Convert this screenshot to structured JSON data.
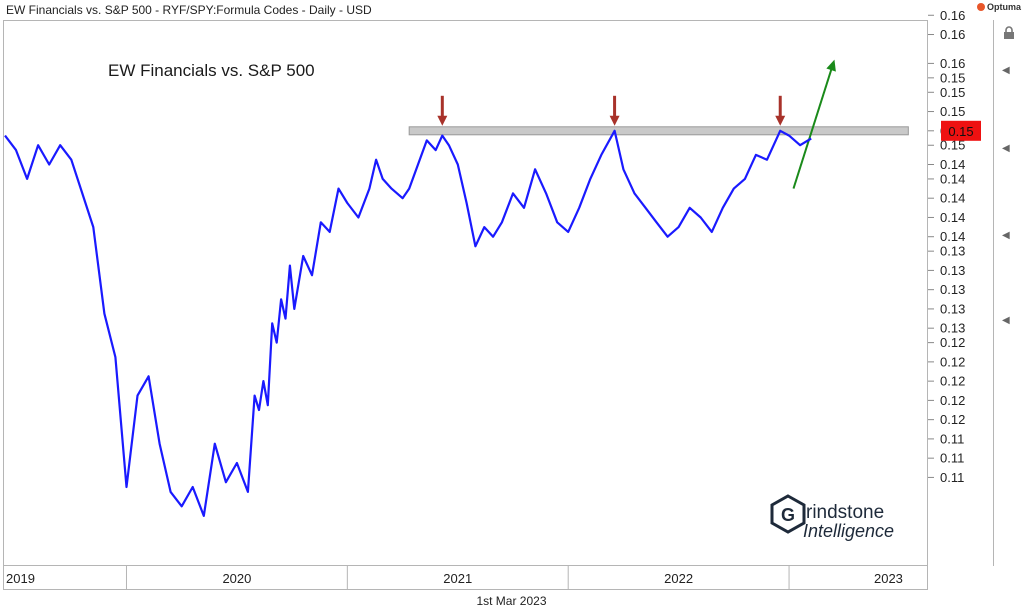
{
  "header": {
    "title": "EW Financials vs. S&P 500 - RYF/SPY:Formula Codes - Daily - USD",
    "brand": "Optuma"
  },
  "footer": {
    "date": "1st Mar 2023"
  },
  "watermark": {
    "line1": "rindstone",
    "line2": "Intelligence",
    "logo_letter": "G"
  },
  "last_value": {
    "label": "0.15",
    "value": 0.152,
    "color": "#ee1111"
  },
  "colors": {
    "series": "#1a1aff",
    "resistance": "#c9c9c9",
    "marker": "#a8322a",
    "projection": "#1a8a1a",
    "logo": "#1e2a3a"
  },
  "chart_data": {
    "type": "line",
    "title": "EW Financials vs. S&P 500",
    "xlabel": "",
    "ylabel": "",
    "x_tick_labels": [
      "2019",
      "2020",
      "2021",
      "2022",
      "2023"
    ],
    "x_domain": [
      2018.95,
      2023.12
    ],
    "ylim": [
      0.1068,
      0.1633
    ],
    "y_tick_labels": [
      "0.16",
      "0.16",
      "0.16",
      "0.15",
      "0.15",
      "0.15",
      "0.15",
      "0.15",
      "0.14",
      "0.14",
      "0.14",
      "0.14",
      "0.14",
      "0.13",
      "0.13",
      "0.13",
      "0.13",
      "0.13",
      "0.12",
      "0.12",
      "0.12",
      "0.12",
      "0.12",
      "0.11",
      "0.11",
      "0.11"
    ],
    "y_tick_values": [
      0.164,
      0.162,
      0.159,
      0.1575,
      0.156,
      0.154,
      0.152,
      0.1505,
      0.1485,
      0.147,
      0.145,
      0.143,
      0.141,
      0.1395,
      0.1375,
      0.1355,
      0.1335,
      0.1315,
      0.13,
      0.128,
      0.126,
      0.124,
      0.122,
      0.12,
      0.118,
      0.116
    ],
    "grid": false,
    "annotations": {
      "resistance_level": 0.152,
      "resistance_x": [
        2020.78,
        2023.04
      ],
      "tops": [
        2020.93,
        2021.71,
        2022.46
      ],
      "projection": {
        "from": [
          2022.52,
          0.146
        ],
        "to": [
          2022.7,
          0.159
        ]
      }
    },
    "series": [
      {
        "x": [
          2018.95,
          2019.0,
          2019.05,
          2019.1,
          2019.15,
          2019.2,
          2019.25,
          2019.3,
          2019.35,
          2019.4,
          2019.45,
          2019.5,
          2019.55,
          2019.6,
          2019.65,
          2019.7,
          2019.75,
          2019.8,
          2019.85,
          2019.9,
          2019.95,
          2020.0,
          2020.05,
          2020.08,
          2020.1,
          2020.12,
          2020.14,
          2020.16,
          2020.18,
          2020.2,
          2020.22,
          2020.24,
          2020.26,
          2020.3,
          2020.34,
          2020.38,
          2020.42,
          2020.46,
          2020.5,
          2020.55,
          2020.6,
          2020.63,
          2020.66,
          2020.7,
          2020.75,
          2020.78,
          2020.82,
          2020.86,
          2020.9,
          2020.93,
          2020.96,
          2021.0,
          2021.04,
          2021.08,
          2021.12,
          2021.16,
          2021.2,
          2021.25,
          2021.3,
          2021.35,
          2021.4,
          2021.45,
          2021.5,
          2021.55,
          2021.6,
          2021.65,
          2021.71,
          2021.75,
          2021.8,
          2021.85,
          2021.9,
          2021.95,
          2022.0,
          2022.05,
          2022.1,
          2022.15,
          2022.2,
          2022.25,
          2022.3,
          2022.35,
          2022.4,
          2022.46,
          2022.5,
          2022.55,
          2022.6
        ],
        "y": [
          0.1515,
          0.15,
          0.147,
          0.1505,
          0.1485,
          0.1505,
          0.149,
          0.1455,
          0.142,
          0.133,
          0.1285,
          0.115,
          0.1245,
          0.1265,
          0.1195,
          0.1145,
          0.113,
          0.115,
          0.112,
          0.1195,
          0.1155,
          0.1175,
          0.1145,
          0.1245,
          0.123,
          0.126,
          0.1235,
          0.132,
          0.13,
          0.1345,
          0.1325,
          0.138,
          0.1335,
          0.139,
          0.137,
          0.1425,
          0.1415,
          0.146,
          0.1445,
          0.143,
          0.146,
          0.149,
          0.147,
          0.146,
          0.145,
          0.146,
          0.1485,
          0.151,
          0.15,
          0.1515,
          0.1505,
          0.1485,
          0.1445,
          0.14,
          0.142,
          0.141,
          0.1425,
          0.1455,
          0.144,
          0.148,
          0.1455,
          0.1425,
          0.1415,
          0.144,
          0.147,
          0.1495,
          0.152,
          0.148,
          0.1455,
          0.144,
          0.1425,
          0.141,
          0.142,
          0.144,
          0.143,
          0.1415,
          0.144,
          0.146,
          0.147,
          0.1495,
          0.149,
          0.152,
          0.1515,
          0.1505,
          0.1512
        ]
      }
    ]
  }
}
